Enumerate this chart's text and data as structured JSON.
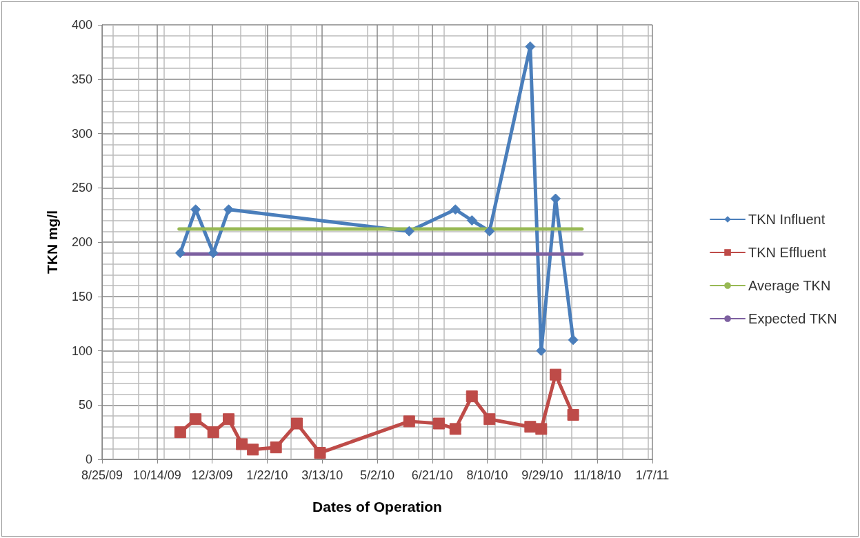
{
  "chart_data": {
    "type": "line",
    "xlabel": "Dates of Operation",
    "ylabel": "TKN mg/l",
    "xlim": [
      "2009-08-25",
      "2011-01-07"
    ],
    "xticks": [
      {
        "value": "2009-08-25",
        "label": "8/25/09"
      },
      {
        "value": "2009-10-14",
        "label": "10/14/09"
      },
      {
        "value": "2009-12-03",
        "label": "12/3/09"
      },
      {
        "value": "2010-01-22",
        "label": "1/22/10"
      },
      {
        "value": "2010-03-13",
        "label": "3/13/10"
      },
      {
        "value": "2010-05-02",
        "label": "5/2/10"
      },
      {
        "value": "2010-06-21",
        "label": "6/21/10"
      },
      {
        "value": "2010-08-10",
        "label": "8/10/10"
      },
      {
        "value": "2010-09-29",
        "label": "9/29/10"
      },
      {
        "value": "2010-11-18",
        "label": "11/18/10"
      },
      {
        "value": "2011-01-07",
        "label": "1/7/11"
      }
    ],
    "ylim": [
      0,
      400
    ],
    "yticks": [
      0,
      50,
      100,
      150,
      200,
      250,
      300,
      350,
      400
    ],
    "grid": true,
    "legend": "right",
    "series": [
      {
        "name": "TKN Influent",
        "color": "#4a7ebb",
        "marker": "diamond",
        "x": [
          "2009-11-04",
          "2009-11-18",
          "2009-12-04",
          "2009-12-18",
          "2010-05-31",
          "2010-07-12",
          "2010-07-27",
          "2010-08-12",
          "2010-09-18",
          "2010-09-28",
          "2010-10-11",
          "2010-10-27"
        ],
        "values": [
          190,
          230,
          190,
          230,
          210,
          230,
          220,
          210,
          380,
          100,
          240,
          110
        ]
      },
      {
        "name": "TKN Effluent",
        "color": "#be4b48",
        "marker": "square",
        "x": [
          "2009-11-04",
          "2009-11-18",
          "2009-12-04",
          "2009-12-18",
          "2009-12-30",
          "2010-01-09",
          "2010-01-30",
          "2010-02-18",
          "2010-03-11",
          "2010-05-31",
          "2010-06-27",
          "2010-07-12",
          "2010-07-27",
          "2010-08-12",
          "2010-09-18",
          "2010-09-28",
          "2010-10-11",
          "2010-10-27"
        ],
        "values": [
          25,
          37,
          25,
          37,
          14,
          9,
          11,
          33,
          6,
          35,
          33,
          28,
          58,
          37,
          30,
          28,
          78,
          41
        ]
      },
      {
        "name": "Average TKN",
        "color": "#98b954",
        "marker": "none",
        "x": [
          "2009-11-03",
          "2010-11-04"
        ],
        "values": [
          212,
          212
        ]
      },
      {
        "name": "Expected TKN",
        "color": "#7d60a0",
        "marker": "none",
        "x": [
          "2009-11-03",
          "2010-11-04"
        ],
        "values": [
          189,
          189
        ]
      }
    ]
  }
}
